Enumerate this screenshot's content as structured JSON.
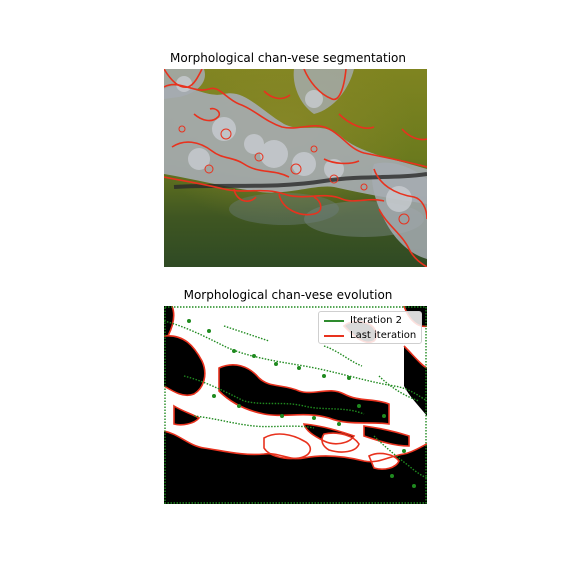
{
  "figure": {
    "top": {
      "title": "Morphological chan-vese segmentation"
    },
    "bottom": {
      "title": "Morphological chan-vese evolution",
      "legend": [
        {
          "label": "Iteration 2",
          "color": "#2e8b2e"
        },
        {
          "label": "Last iteration",
          "color": "#e8321e"
        }
      ]
    }
  },
  "colors": {
    "contour_last": "#e8321e",
    "contour_iter2": "#1f8a1f",
    "background_olive": "#6d7a1c",
    "lichen_gray": "#a7adb4"
  }
}
